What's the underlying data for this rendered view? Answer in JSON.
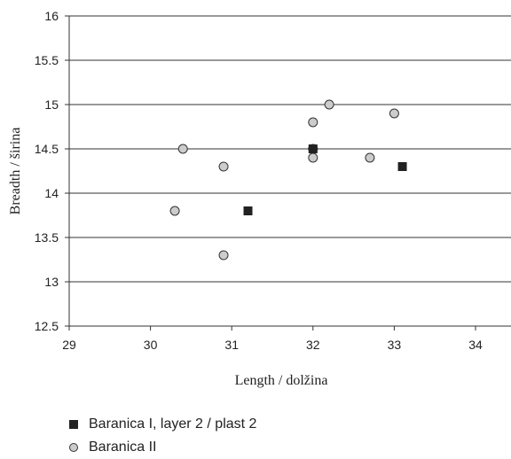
{
  "chart_data": {
    "type": "scatter",
    "xlabel": "Length / dolžina",
    "ylabel": "Breadth / širina",
    "xlim": [
      29,
      34
    ],
    "ylim": [
      12.5,
      16
    ],
    "x_ticks": [
      "29",
      "30",
      "31",
      "32",
      "33",
      "34"
    ],
    "y_ticks": [
      "12.5",
      "13",
      "13.5",
      "14",
      "14.5",
      "15",
      "15.5",
      "16"
    ],
    "grid": "horizontal",
    "legend_position": "bottom-left",
    "series": [
      {
        "name": "Baranica I, layer 2 / plast 2",
        "marker": "square",
        "color": "#222222",
        "points": [
          {
            "x": 31.2,
            "y": 13.8
          },
          {
            "x": 32.0,
            "y": 14.5
          },
          {
            "x": 33.1,
            "y": 14.3
          }
        ]
      },
      {
        "name": "Baranica II",
        "marker": "circle",
        "color": "#cccccc",
        "points": [
          {
            "x": 30.3,
            "y": 13.8
          },
          {
            "x": 30.4,
            "y": 14.5
          },
          {
            "x": 30.9,
            "y": 14.3
          },
          {
            "x": 30.9,
            "y": 13.3
          },
          {
            "x": 32.0,
            "y": 14.8
          },
          {
            "x": 32.0,
            "y": 14.4
          },
          {
            "x": 32.0,
            "y": 14.5
          },
          {
            "x": 32.2,
            "y": 15.0
          },
          {
            "x": 32.7,
            "y": 14.4
          },
          {
            "x": 33.0,
            "y": 14.9
          }
        ]
      }
    ]
  }
}
